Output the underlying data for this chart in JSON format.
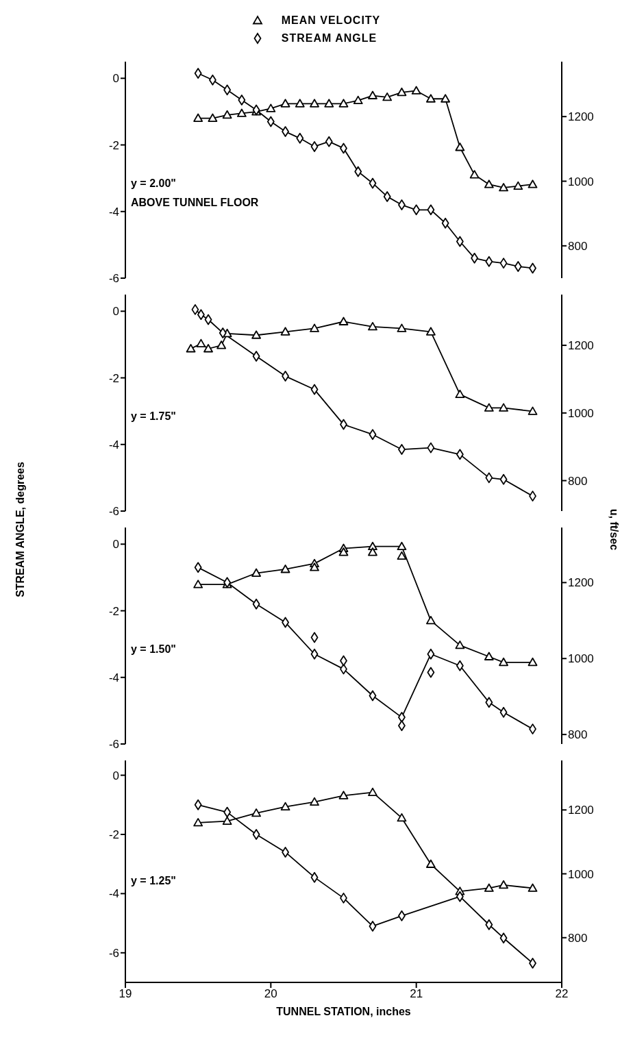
{
  "chart_data": [
    {
      "type": "line",
      "legend": "top",
      "tick_labels": "y",
      "grid": false,
      "xlim": [
        19,
        22
      ],
      "ylim": [
        -6,
        0.5
      ],
      "yticks": [
        -6,
        -4,
        -2,
        0
      ],
      "y2lim": [
        700,
        1370
      ],
      "y2ticks": [
        800,
        1000,
        1200
      ],
      "annotations": [
        "y = 2.00\"",
        "ABOVE TUNNEL FLOOR"
      ],
      "series": [
        {
          "name": "MEAN VELOCITY",
          "axis": "y2",
          "marker": "triangle",
          "color": "#000000",
          "x": [
            19.5,
            19.6,
            19.7,
            19.8,
            19.9,
            20.0,
            20.1,
            20.2,
            20.3,
            20.4,
            20.5,
            20.6,
            20.7,
            20.8,
            20.9,
            21.0,
            21.1,
            21.2,
            21.3,
            21.4,
            21.5,
            21.6,
            21.7,
            21.8
          ],
          "values": [
            1195,
            1195,
            1205,
            1210,
            1215,
            1225,
            1240,
            1240,
            1240,
            1240,
            1240,
            1250,
            1265,
            1260,
            1275,
            1280,
            1255,
            1255,
            1105,
            1020,
            990,
            980,
            985,
            990
          ]
        },
        {
          "name": "STREAM ANGLE",
          "marker": "diamond",
          "color": "#000000",
          "x": [
            19.5,
            19.6,
            19.7,
            19.8,
            19.9,
            20.0,
            20.1,
            20.2,
            20.3,
            20.4,
            20.5,
            20.6,
            20.7,
            20.8,
            20.9,
            21.0,
            21.1,
            21.2,
            21.3,
            21.4,
            21.5,
            21.6,
            21.7,
            21.8
          ],
          "values": [
            0.15,
            -0.05,
            -0.35,
            -0.65,
            -0.95,
            -1.3,
            -1.6,
            -1.8,
            -2.05,
            -1.9,
            -2.1,
            -2.8,
            -3.15,
            -3.55,
            -3.8,
            -3.95,
            -3.95,
            -4.35,
            -4.9,
            -5.4,
            -5.5,
            -5.55,
            -5.65,
            -5.7
          ]
        }
      ]
    },
    {
      "type": "line",
      "tick_labels": "y",
      "grid": false,
      "xlim": [
        19,
        22
      ],
      "ylim": [
        -6,
        0.5
      ],
      "yticks": [
        -6,
        -4,
        -2,
        0
      ],
      "y2lim": [
        710,
        1350
      ],
      "y2ticks": [
        800,
        1000,
        1200
      ],
      "ylabel": "STREAM ANGLE, degrees",
      "y2label": "u, ft/sec",
      "annotations": [
        "y = 1.75\""
      ],
      "series": [
        {
          "axis": "y2",
          "marker": "triangle",
          "color": "#000000",
          "x": [
            19.45,
            19.52,
            19.57,
            19.66,
            19.7,
            19.9,
            20.1,
            20.3,
            20.5,
            20.7,
            20.9,
            21.1,
            21.3,
            21.5,
            21.6,
            21.8
          ],
          "values": [
            1190,
            1205,
            1190,
            1200,
            1235,
            1230,
            1240,
            1250,
            1270,
            1255,
            1250,
            1240,
            1055,
            1015,
            1015,
            1005
          ]
        },
        {
          "marker": "diamond",
          "color": "#000000",
          "x": [
            19.48,
            19.52,
            19.57,
            19.67,
            19.9,
            20.1,
            20.3,
            20.5,
            20.7,
            20.9,
            21.1,
            21.3,
            21.5,
            21.6,
            21.8
          ],
          "values": [
            0.05,
            -0.1,
            -0.25,
            -0.65,
            -1.35,
            -1.95,
            -2.35,
            -3.4,
            -3.7,
            -4.15,
            -4.1,
            -4.3,
            -5.0,
            -5.05,
            -5.55
          ]
        }
      ]
    },
    {
      "type": "line",
      "tick_labels": "y",
      "grid": false,
      "xlim": [
        19,
        22
      ],
      "ylim": [
        -6,
        0.5
      ],
      "yticks": [
        -6,
        -4,
        -2,
        0
      ],
      "y2lim": [
        775,
        1345
      ],
      "y2ticks": [
        800,
        1000,
        1200
      ],
      "annotations": [
        "y = 1.50\""
      ],
      "series": [
        {
          "axis": "y2",
          "marker": "triangle",
          "color": "#000000",
          "x": [
            19.5,
            19.7,
            19.9,
            20.1,
            20.3,
            20.5,
            20.7,
            20.9,
            21.1,
            21.3,
            21.5,
            21.6,
            21.8
          ],
          "values": [
            1195,
            1195,
            1225,
            1235,
            1250,
            1290,
            1295,
            1295,
            1100,
            1035,
            1005,
            990,
            990
          ]
        },
        {
          "type": "scatter",
          "axis": "y2",
          "marker": "triangle",
          "color": "#000000",
          "x": [
            20.3,
            20.5,
            20.7,
            20.9
          ],
          "values": [
            1240,
            1280,
            1280,
            1270
          ]
        },
        {
          "marker": "diamond",
          "color": "#000000",
          "x": [
            19.5,
            19.7,
            19.9,
            20.1,
            20.3,
            20.5,
            20.7,
            20.9,
            21.1,
            21.3,
            21.5,
            21.6,
            21.8
          ],
          "values": [
            -0.7,
            -1.15,
            -1.8,
            -2.35,
            -3.3,
            -3.75,
            -4.55,
            -5.2,
            -3.3,
            -3.65,
            -4.75,
            -5.05,
            -5.55
          ]
        },
        {
          "type": "scatter",
          "marker": "diamond",
          "color": "#000000",
          "x": [
            20.3,
            20.5,
            20.9,
            21.1
          ],
          "values": [
            -2.8,
            -3.5,
            -5.45,
            -3.85
          ]
        }
      ]
    },
    {
      "type": "line",
      "grid": false,
      "xlim": [
        19,
        22
      ],
      "xticks": [
        19,
        20,
        21,
        22
      ],
      "ylim": [
        -7,
        0.5
      ],
      "yticks": [
        -6,
        -4,
        -2,
        0
      ],
      "y2lim": [
        660,
        1355
      ],
      "y2ticks": [
        800,
        1000,
        1200
      ],
      "xlabel": "TUNNEL STATION, inches",
      "annotations": [
        "y = 1.25\""
      ],
      "series": [
        {
          "axis": "y2",
          "marker": "triangle",
          "color": "#000000",
          "x": [
            19.5,
            19.7,
            19.9,
            20.1,
            20.3,
            20.5,
            20.7,
            20.9,
            21.1,
            21.3,
            21.5,
            21.6,
            21.8
          ],
          "values": [
            1160,
            1165,
            1190,
            1210,
            1225,
            1245,
            1255,
            1175,
            1030,
            945,
            955,
            965,
            955
          ]
        },
        {
          "marker": "diamond",
          "color": "#000000",
          "x": [
            19.5,
            19.7,
            19.9,
            20.1,
            20.3,
            20.5,
            20.7,
            20.9,
            21.3,
            21.5,
            21.6,
            21.8
          ],
          "values": [
            -1.0,
            -1.25,
            -2.0,
            -2.6,
            -3.45,
            -4.15,
            -5.1,
            -4.75,
            -4.1,
            -5.05,
            -5.5,
            -6.35
          ]
        }
      ]
    }
  ]
}
